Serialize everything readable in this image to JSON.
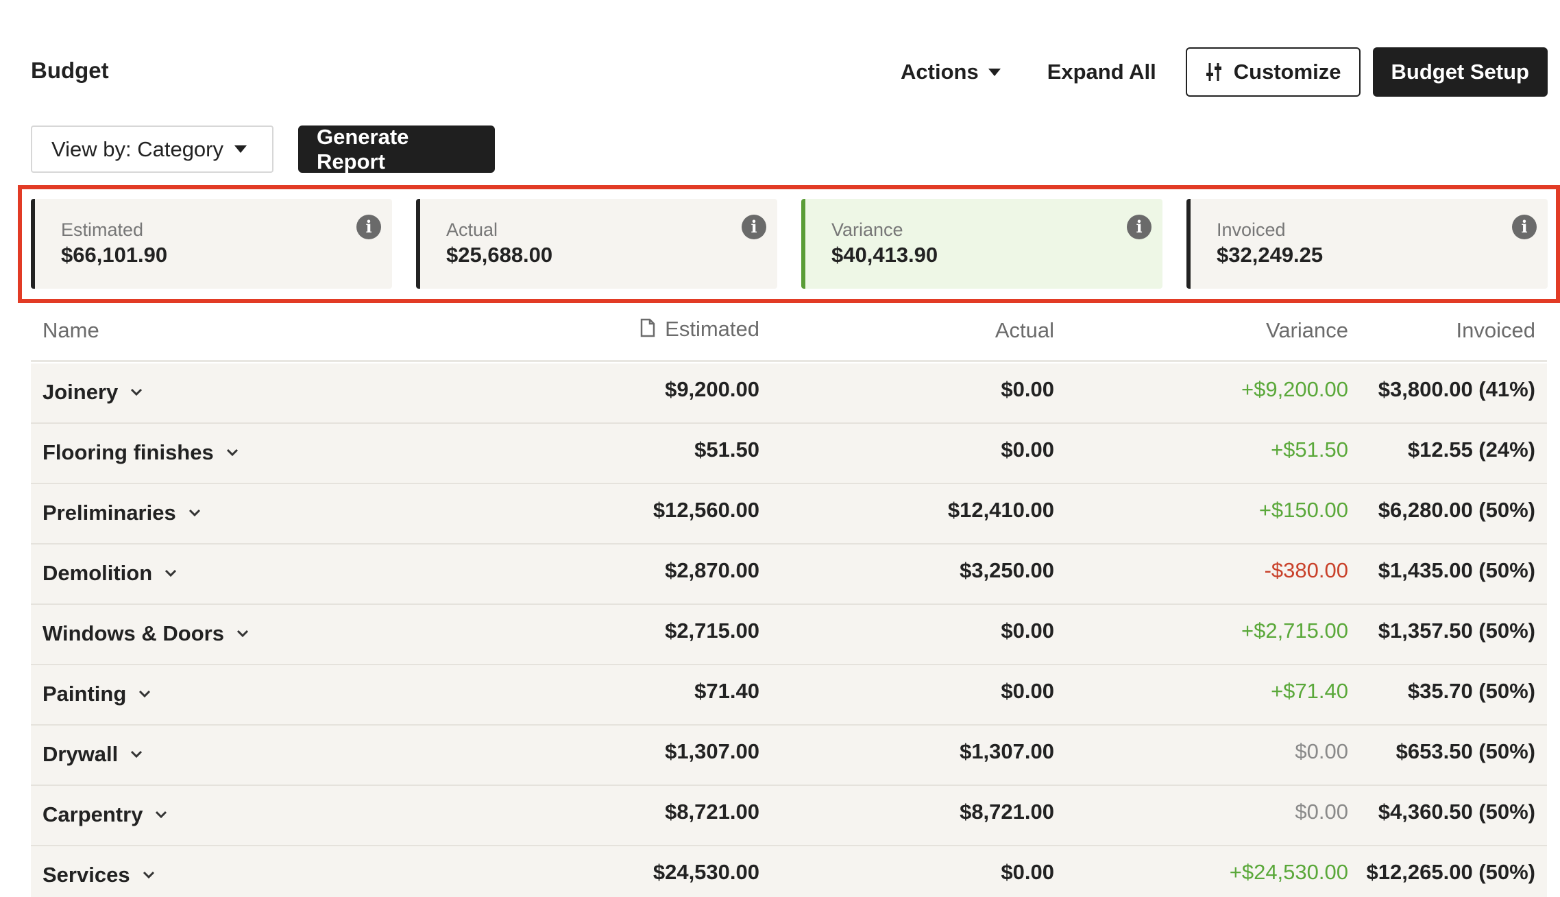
{
  "header": {
    "title": "Budget",
    "actions_label": "Actions",
    "expand_all_label": "Expand All",
    "customize_label": "Customize",
    "budget_setup_label": "Budget Setup"
  },
  "toolbar": {
    "view_by_label": "View by: Category",
    "generate_report_label": "Generate Report"
  },
  "summary": {
    "estimated": {
      "label": "Estimated",
      "value": "$66,101.90"
    },
    "actual": {
      "label": "Actual",
      "value": "$25,688.00"
    },
    "variance": {
      "label": "Variance",
      "value": "$40,413.90"
    },
    "invoiced": {
      "label": "Invoiced",
      "value": "$32,249.25"
    }
  },
  "table": {
    "columns": {
      "name": "Name",
      "estimated": "Estimated",
      "actual": "Actual",
      "variance": "Variance",
      "invoiced": "Invoiced"
    },
    "rows": [
      {
        "name": "Joinery",
        "estimated": "$9,200.00",
        "actual": "$0.00",
        "variance": "+$9,200.00",
        "variance_sign": "pos",
        "invoiced": "$3,800.00 (41%)"
      },
      {
        "name": "Flooring finishes",
        "estimated": "$51.50",
        "actual": "$0.00",
        "variance": "+$51.50",
        "variance_sign": "pos",
        "invoiced": "$12.55 (24%)"
      },
      {
        "name": "Preliminaries",
        "estimated": "$12,560.00",
        "actual": "$12,410.00",
        "variance": "+$150.00",
        "variance_sign": "pos",
        "invoiced": "$6,280.00 (50%)"
      },
      {
        "name": "Demolition",
        "estimated": "$2,870.00",
        "actual": "$3,250.00",
        "variance": "-$380.00",
        "variance_sign": "neg",
        "invoiced": "$1,435.00 (50%)"
      },
      {
        "name": "Windows & Doors",
        "estimated": "$2,715.00",
        "actual": "$0.00",
        "variance": "+$2,715.00",
        "variance_sign": "pos",
        "invoiced": "$1,357.50 (50%)"
      },
      {
        "name": "Painting",
        "estimated": "$71.40",
        "actual": "$0.00",
        "variance": "+$71.40",
        "variance_sign": "pos",
        "invoiced": "$35.70 (50%)"
      },
      {
        "name": "Drywall",
        "estimated": "$1,307.00",
        "actual": "$1,307.00",
        "variance": "$0.00",
        "variance_sign": "zero",
        "invoiced": "$653.50 (50%)"
      },
      {
        "name": "Carpentry",
        "estimated": "$8,721.00",
        "actual": "$8,721.00",
        "variance": "$0.00",
        "variance_sign": "zero",
        "invoiced": "$4,360.50 (50%)"
      },
      {
        "name": "Services",
        "estimated": "$24,530.00",
        "actual": "$0.00",
        "variance": "+$24,530.00",
        "variance_sign": "pos",
        "invoiced": "$12,265.00 (50%)"
      }
    ]
  },
  "colors": {
    "positive": "#5aa83a",
    "negative": "#c9412a",
    "highlight_frame": "#e23b25",
    "variance_card_bg": "#eef7e6"
  }
}
